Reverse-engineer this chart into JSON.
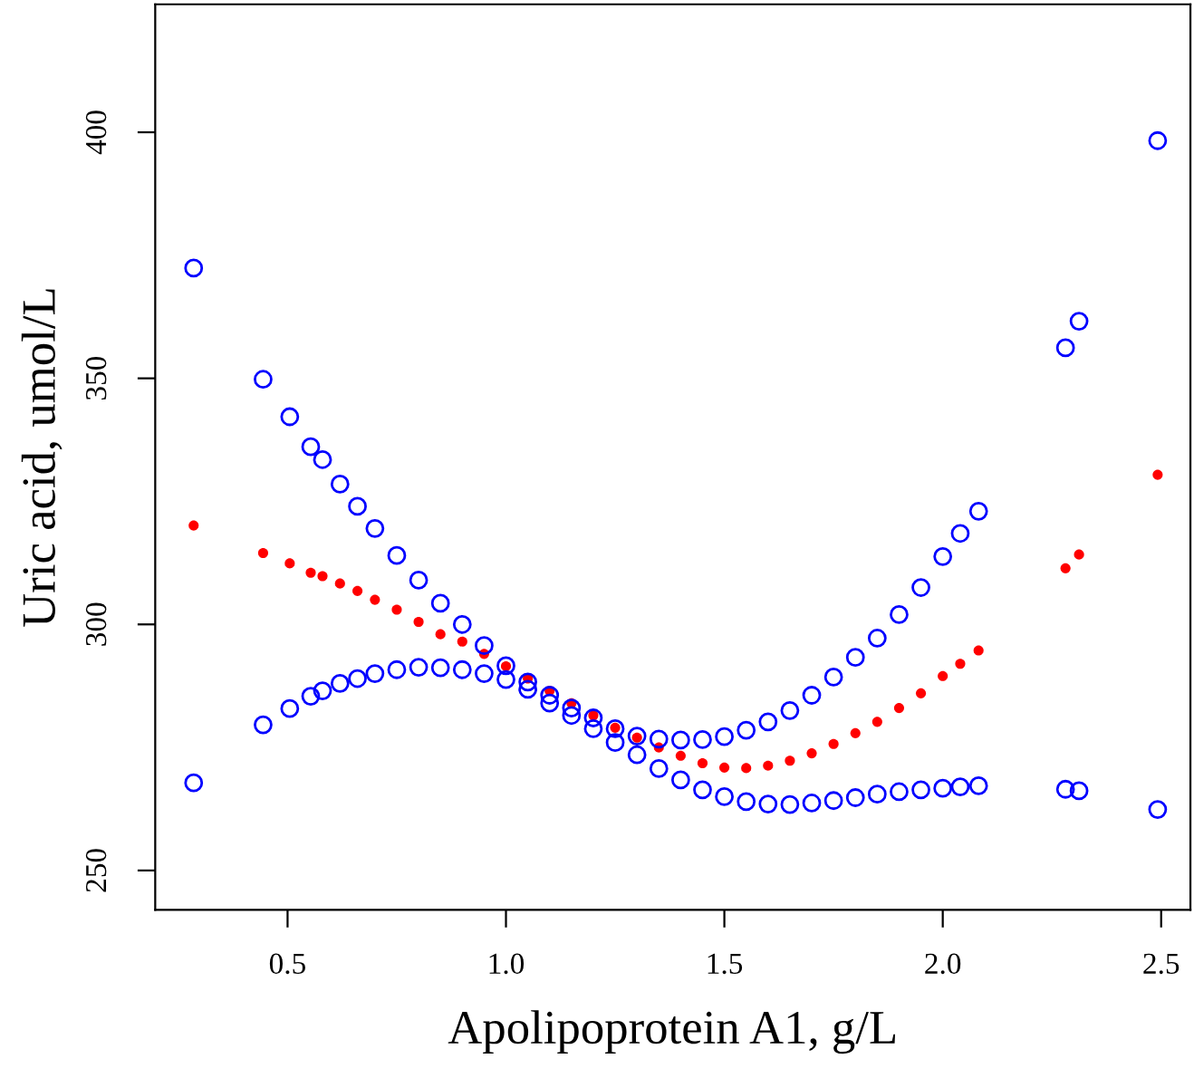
{
  "chart_data": {
    "type": "scatter",
    "xlabel": "Apolipoprotein A1, g/L",
    "ylabel": "Uric acid, umol/L",
    "x": [
      0.285,
      0.444,
      0.505,
      0.553,
      0.58,
      0.62,
      0.66,
      0.7,
      0.75,
      0.8,
      0.85,
      0.9,
      0.95,
      1.0,
      1.05,
      1.1,
      1.15,
      1.2,
      1.25,
      1.3,
      1.35,
      1.4,
      1.45,
      1.5,
      1.55,
      1.6,
      1.65,
      1.7,
      1.75,
      1.8,
      1.85,
      1.9,
      1.95,
      2.0,
      2.04,
      2.082,
      2.281,
      2.312,
      2.492
    ],
    "series": [
      {
        "color": "#ff0000",
        "values": [
          320.1,
          314.5,
          312.4,
          310.5,
          309.8,
          308.3,
          306.8,
          305,
          303,
          300.5,
          298,
          296.5,
          294,
          291.5,
          289,
          286.5,
          284,
          281.5,
          279,
          277,
          275,
          273.3,
          271.8,
          270.9,
          270.8,
          271.3,
          272.3,
          273.8,
          275.7,
          277.9,
          280.2,
          283,
          286,
          289.5,
          292,
          294.7,
          311.4,
          314.2,
          330.4
        ]
      },
      {
        "color": "#0000ff",
        "values": [
          372.4,
          349.8,
          342.2,
          336.1,
          333.5,
          328.5,
          324,
          319.5,
          314,
          309,
          304.3,
          300,
          295.7,
          291.6,
          288.3,
          285.6,
          283,
          281,
          278.8,
          277.3,
          276.7,
          276.5,
          276.6,
          277.2,
          278.5,
          280.2,
          282.5,
          285.6,
          289.3,
          293.3,
          297.2,
          302,
          307.5,
          313.8,
          318.5,
          323.0,
          356.2,
          361.6,
          398.3
        ]
      },
      {
        "color": "#0000ff",
        "values": [
          267.8,
          279.6,
          282.9,
          285.4,
          286.5,
          288,
          289,
          290,
          290.8,
          291.3,
          291.2,
          290.8,
          290,
          288.8,
          286.8,
          284,
          281.5,
          278.8,
          276,
          273.5,
          270.7,
          268.4,
          266.4,
          265,
          264,
          263.5,
          263.4,
          263.7,
          264.2,
          264.8,
          265.5,
          266,
          266.4,
          266.7,
          267,
          267.2,
          266.5,
          266.2,
          262.4
        ]
      }
    ],
    "xlim": [
      0.197,
      2.567
    ],
    "ylim": [
      242,
      426
    ],
    "xticks": [
      {
        "value": 0.5,
        "label": "0.5"
      },
      {
        "value": 1.0,
        "label": "1.0"
      },
      {
        "value": 1.5,
        "label": "1.5"
      },
      {
        "value": 2.0,
        "label": "2.0"
      },
      {
        "value": 2.5,
        "label": "2.5"
      }
    ],
    "yticks": [
      250,
      300,
      350,
      400
    ],
    "marker": "circle",
    "grid": false,
    "legend": false
  }
}
